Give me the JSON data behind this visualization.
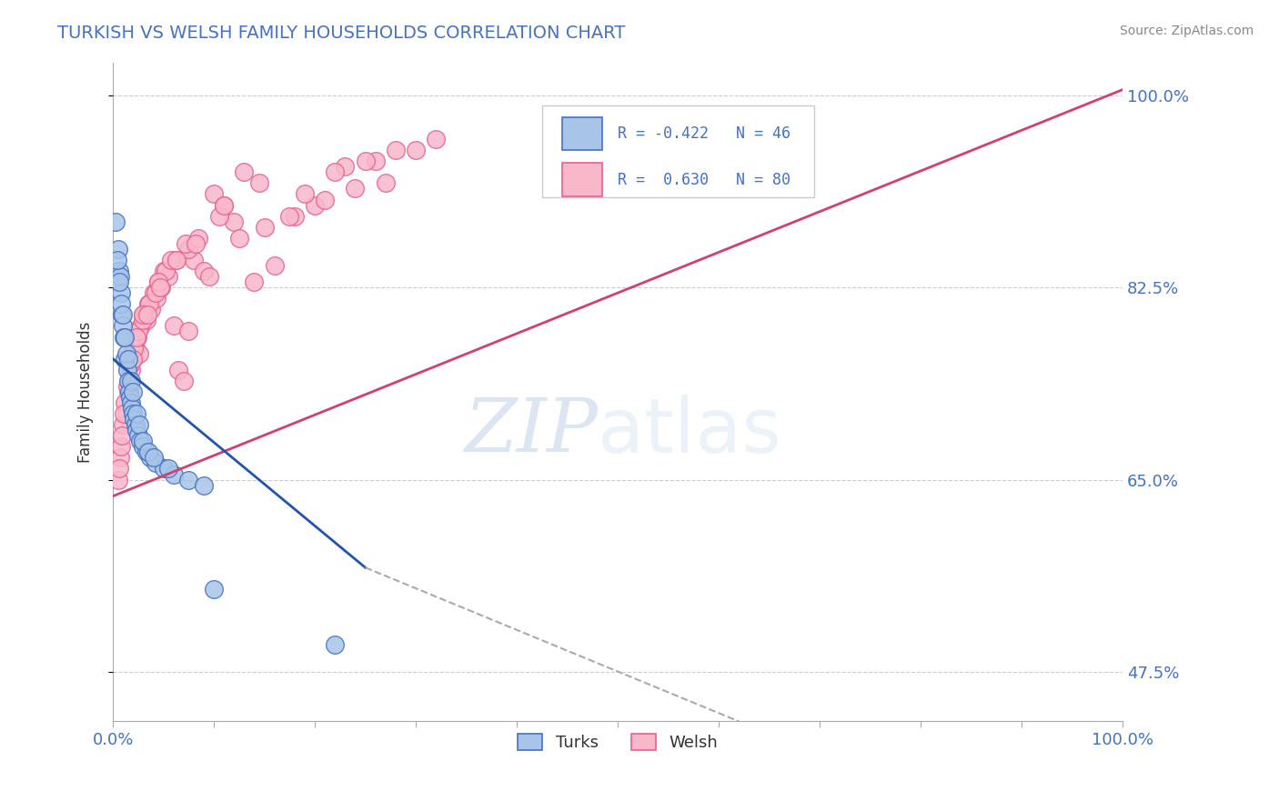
{
  "title": "TURKISH VS WELSH FAMILY HOUSEHOLDS CORRELATION CHART",
  "source_text": "Source: ZipAtlas.com",
  "ylabel": "Family Households",
  "watermark_zip": "ZIP",
  "watermark_atlas": "atlas",
  "xlim": [
    0.0,
    100.0
  ],
  "ylim": [
    43.0,
    103.0
  ],
  "yticks": [
    47.5,
    65.0,
    82.5,
    100.0
  ],
  "legend_R_turks": "-0.422",
  "legend_N_turks": "46",
  "legend_R_welsh": "0.630",
  "legend_N_welsh": "80",
  "turks_fill_color": "#a8c4e8",
  "welsh_fill_color": "#f9b8ca",
  "turks_edge_color": "#4472c4",
  "welsh_edge_color": "#e86090",
  "turks_line_color": "#2255aa",
  "welsh_line_color": "#d04070",
  "title_color": "#4472c4",
  "source_color": "#888888",
  "grid_color": "#cccccc",
  "background_color": "#ffffff",
  "fig_width": 14.06,
  "fig_height": 8.92,
  "turks_scatter_x": [
    0.3,
    0.5,
    0.6,
    0.7,
    0.8,
    0.9,
    1.0,
    1.1,
    1.2,
    1.3,
    1.4,
    1.5,
    1.6,
    1.7,
    1.8,
    1.9,
    2.0,
    2.1,
    2.2,
    2.3,
    2.5,
    2.7,
    3.0,
    3.3,
    3.7,
    4.2,
    5.0,
    6.0,
    7.5,
    9.0,
    0.4,
    0.6,
    0.8,
    1.0,
    1.2,
    1.5,
    1.8,
    2.0,
    2.3,
    2.6,
    3.0,
    3.5,
    4.0,
    5.5,
    10.0,
    22.0
  ],
  "turks_scatter_y": [
    88.5,
    86.0,
    84.0,
    83.5,
    82.0,
    80.0,
    79.0,
    78.0,
    76.0,
    76.5,
    75.0,
    74.0,
    73.0,
    72.5,
    72.0,
    71.5,
    71.0,
    70.5,
    70.0,
    69.5,
    69.0,
    68.5,
    68.0,
    67.5,
    67.0,
    66.5,
    66.0,
    65.5,
    65.0,
    64.5,
    85.0,
    83.0,
    81.0,
    80.0,
    78.0,
    76.0,
    74.0,
    73.0,
    71.0,
    70.0,
    68.5,
    67.5,
    67.0,
    66.0,
    55.0,
    50.0
  ],
  "welsh_scatter_x": [
    0.5,
    0.7,
    0.8,
    1.0,
    1.2,
    1.3,
    1.5,
    1.6,
    1.8,
    2.0,
    2.2,
    2.4,
    2.6,
    2.8,
    3.0,
    3.3,
    3.5,
    3.8,
    4.0,
    4.3,
    4.5,
    4.8,
    5.0,
    5.5,
    6.0,
    6.5,
    7.0,
    7.5,
    8.0,
    9.0,
    10.0,
    11.0,
    12.0,
    14.0,
    16.0,
    18.0,
    20.0,
    23.0,
    26.0,
    30.0,
    0.6,
    0.9,
    1.1,
    1.4,
    1.7,
    2.1,
    2.5,
    3.0,
    3.6,
    4.2,
    5.2,
    6.2,
    7.5,
    9.5,
    12.5,
    15.0,
    17.5,
    21.0,
    24.0,
    27.0,
    2.0,
    3.0,
    4.5,
    5.8,
    7.2,
    8.5,
    10.5,
    13.0,
    2.3,
    3.4,
    4.7,
    6.3,
    8.2,
    11.0,
    14.5,
    19.0,
    22.0,
    25.0,
    28.0,
    32.0
  ],
  "welsh_scatter_y": [
    65.0,
    67.0,
    68.0,
    70.0,
    72.0,
    71.0,
    73.0,
    74.0,
    75.0,
    76.0,
    77.0,
    78.0,
    76.5,
    79.0,
    80.0,
    79.5,
    81.0,
    80.5,
    82.0,
    81.5,
    83.0,
    82.5,
    84.0,
    83.5,
    79.0,
    75.0,
    74.0,
    78.5,
    85.0,
    84.0,
    91.0,
    90.0,
    88.5,
    83.0,
    84.5,
    89.0,
    90.0,
    93.5,
    94.0,
    95.0,
    66.0,
    69.0,
    71.0,
    73.5,
    75.5,
    77.0,
    78.5,
    79.5,
    81.0,
    82.0,
    84.0,
    85.0,
    86.0,
    83.5,
    87.0,
    88.0,
    89.0,
    90.5,
    91.5,
    92.0,
    76.0,
    80.0,
    83.0,
    85.0,
    86.5,
    87.0,
    89.0,
    93.0,
    78.0,
    80.0,
    82.5,
    85.0,
    86.5,
    90.0,
    92.0,
    91.0,
    93.0,
    94.0,
    95.0,
    96.0
  ],
  "turks_line_x0": 0.0,
  "turks_line_x1": 25.0,
  "turks_line_y0": 76.0,
  "turks_line_y1": 57.0,
  "turks_dash_x0": 25.0,
  "turks_dash_x1": 62.0,
  "turks_dash_y0": 57.0,
  "turks_dash_y1": 43.0,
  "welsh_line_x0": 0.0,
  "welsh_line_x1": 100.0,
  "welsh_line_y0": 63.5,
  "welsh_line_y1": 100.5
}
